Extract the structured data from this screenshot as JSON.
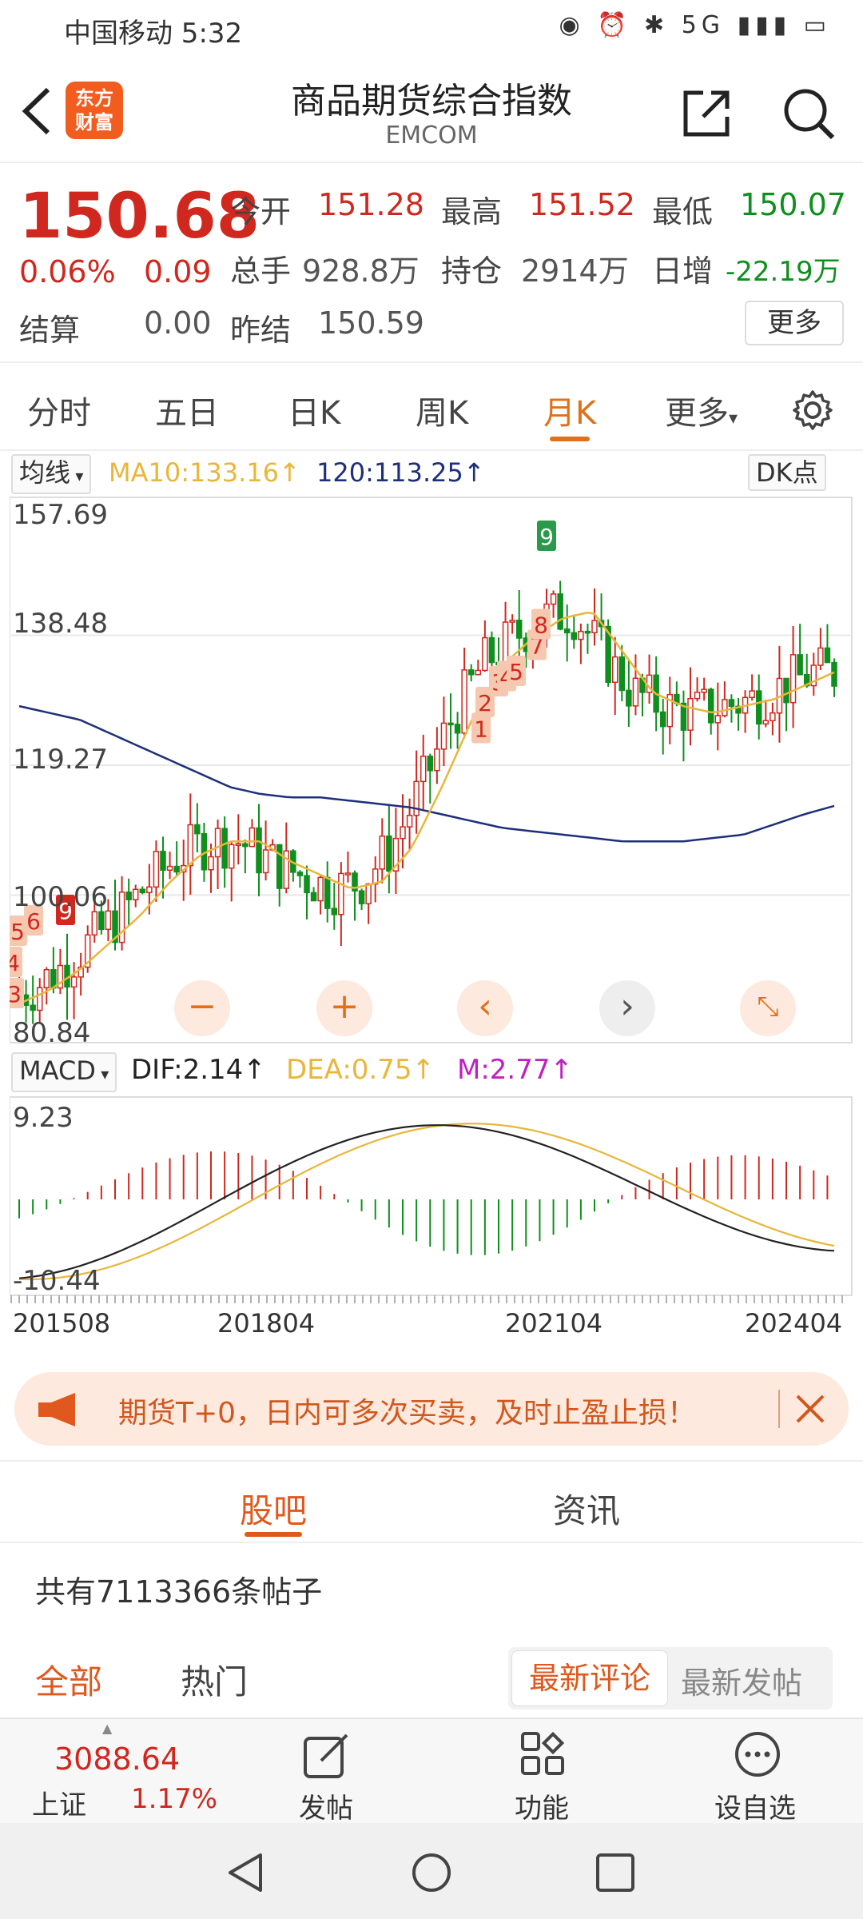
{
  "status_bar": {
    "carrier_time": "中国移动 5:32",
    "icons": "◉ ⏰ ✱ 5G ▮▮▮ ▭"
  },
  "header": {
    "logo_line1": "东方",
    "logo_line2": "财富",
    "title": "商品期货综合指数",
    "subtitle": "EMCOM"
  },
  "quote": {
    "price": "150.68",
    "change_pct": "0.06%",
    "change": "0.09",
    "open_label": "今开",
    "open": "151.28",
    "high_label": "最高",
    "high": "151.52",
    "low_label": "最低",
    "low": "150.07",
    "volume_label": "总手",
    "volume": "928.8万",
    "oi_label": "持仓",
    "oi": "2914万",
    "daily_inc_label": "日增",
    "daily_inc": "-22.19万",
    "settle_label": "结算",
    "settle": "0.00",
    "prev_settle_label": "昨结",
    "prev_settle": "150.59",
    "more": "更多"
  },
  "tabs": [
    "分时",
    "五日",
    "日K",
    "周K",
    "月K",
    "更多"
  ],
  "active_tab": 4,
  "ma_row": {
    "select": "均线",
    "ma10": "MA10:133.16↑",
    "ma120": "120:113.25↑",
    "dk": "DK点"
  },
  "macd_row": {
    "select": "MACD",
    "dif": "DIF:2.14↑",
    "dea": "DEA:0.75↑",
    "m": "M:2.77↑"
  },
  "colors": {
    "up": "#d0281e",
    "down": "#0f8f1e",
    "accent": "#e0701a",
    "ma10": "#e8b63a",
    "ma120": "#1e2f7a",
    "m_line": "#c020c0"
  },
  "chart_data": [
    {
      "type": "line",
      "y_ticks": [
        "157.69",
        "138.48",
        "119.27",
        "100.06",
        "80.84"
      ],
      "ylim": [
        80.84,
        157.69
      ],
      "x_ticks": [
        "201508",
        "201804",
        "202104",
        "202404"
      ],
      "series": [
        {
          "name": "MA10",
          "values": [
            84,
            86,
            89,
            93,
            97,
            102,
            106,
            108,
            108,
            105,
            103,
            101,
            102,
            107,
            116,
            126,
            134,
            138,
            141,
            142,
            136,
            130,
            128,
            127,
            128,
            129,
            131,
            133
          ]
        },
        {
          "name": "120",
          "values": [
            128,
            127,
            126,
            124,
            122,
            120,
            118,
            116,
            115,
            114.5,
            114.5,
            114,
            113.5,
            113,
            112,
            111,
            110,
            109.5,
            109,
            108.5,
            108,
            108,
            108,
            108.5,
            109,
            110.5,
            112,
            113.25
          ]
        }
      ],
      "markers": [
        "4",
        "5",
        "6",
        "3",
        "9",
        "1",
        "2",
        "3",
        "4",
        "5",
        "7",
        "8",
        "9"
      ]
    },
    {
      "type": "bar",
      "y_ticks": [
        "9.23",
        "-10.44"
      ],
      "ylim": [
        -10.44,
        9.23
      ]
    }
  ],
  "banner": {
    "text": "期货T+0，日内可多次买卖，及时止盈止损！"
  },
  "bbs": {
    "tab1": "股吧",
    "tab2": "资讯",
    "count_text": "共有7113366条帖子",
    "filter_all": "全部",
    "filter_hot": "热门",
    "sort_latest_comment": "最新评论",
    "sort_latest_post": "最新发帖"
  },
  "bottom_nav": {
    "index_value": "3088.64",
    "index_name": "上证",
    "index_pct": "1.17%",
    "post": "发帖",
    "func": "功能",
    "watch": "设自选"
  }
}
